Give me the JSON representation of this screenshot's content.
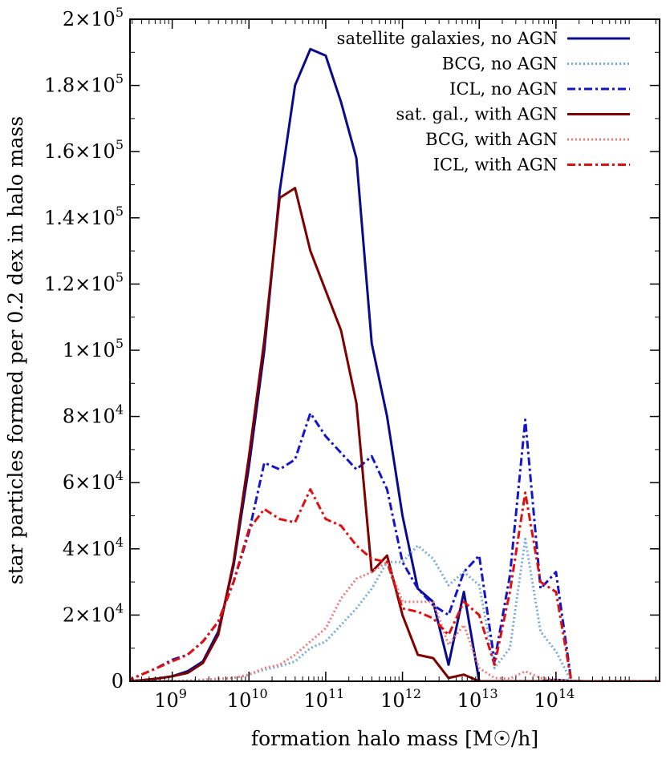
{
  "chart_data": {
    "type": "line",
    "xlabel": "formation halo mass [M☉/h]",
    "ylabel": "star particles formed per 0.2 dex in halo mass",
    "xscale": "log",
    "xlim_log10": [
      8.45,
      15.35
    ],
    "ylim": [
      0,
      200000
    ],
    "grid": false,
    "legend_position": "top-right",
    "xticks": [
      {
        "log10": 9,
        "mantissa": "10",
        "exponent": "9"
      },
      {
        "log10": 10,
        "mantissa": "10",
        "exponent": "10"
      },
      {
        "log10": 11,
        "mantissa": "10",
        "exponent": "11"
      },
      {
        "log10": 12,
        "mantissa": "10",
        "exponent": "12"
      },
      {
        "log10": 13,
        "mantissa": "10",
        "exponent": "13"
      },
      {
        "log10": 14,
        "mantissa": "10",
        "exponent": "14"
      }
    ],
    "yticks": [
      {
        "value": 0,
        "mantissa": "0",
        "exponent": ""
      },
      {
        "value": 20000,
        "mantissa": "2×10",
        "exponent": "4"
      },
      {
        "value": 40000,
        "mantissa": "4×10",
        "exponent": "4"
      },
      {
        "value": 60000,
        "mantissa": "6×10",
        "exponent": "4"
      },
      {
        "value": 80000,
        "mantissa": "8×10",
        "exponent": "4"
      },
      {
        "value": 100000,
        "mantissa": "1×10",
        "exponent": "5"
      },
      {
        "value": 120000,
        "mantissa": "1.2×10",
        "exponent": "5"
      },
      {
        "value": 140000,
        "mantissa": "1.4×10",
        "exponent": "5"
      },
      {
        "value": 160000,
        "mantissa": "1.6×10",
        "exponent": "5"
      },
      {
        "value": 180000,
        "mantissa": "1.8×10",
        "exponent": "5"
      },
      {
        "value": 200000,
        "mantissa": "2×10",
        "exponent": "5"
      }
    ],
    "series": [
      {
        "name": "satellite galaxies, no AGN",
        "color": "#0a0a8c",
        "style": "solid",
        "x_log10": [
          8.4,
          8.6,
          8.8,
          9.0,
          9.2,
          9.4,
          9.6,
          9.8,
          10.0,
          10.2,
          10.4,
          10.6,
          10.8,
          11.0,
          11.2,
          11.4,
          11.6,
          11.8,
          12.0,
          12.2,
          12.4,
          12.6,
          12.8,
          13.0,
          13.2,
          13.4,
          13.6,
          13.8,
          14.0,
          14.2,
          14.4,
          14.6,
          14.8,
          15.0,
          15.2,
          15.4
        ],
        "y": [
          0,
          300,
          800,
          1500,
          3000,
          6000,
          15000,
          35000,
          65000,
          100000,
          148000,
          180000,
          191000,
          189000,
          175000,
          158000,
          102000,
          80000,
          50000,
          28000,
          24000,
          5000,
          27000,
          0,
          0,
          0,
          0,
          0,
          400,
          100,
          0,
          0,
          0,
          0,
          0,
          0
        ]
      },
      {
        "name": "BCG, no AGN",
        "color": "#76aadb",
        "style": "dotted",
        "x_log10": [
          8.4,
          8.6,
          8.8,
          9.0,
          9.2,
          9.4,
          9.6,
          9.8,
          10.0,
          10.2,
          10.4,
          10.6,
          10.8,
          11.0,
          11.2,
          11.4,
          11.6,
          11.8,
          12.0,
          12.2,
          12.4,
          12.6,
          12.8,
          13.0,
          13.2,
          13.4,
          13.6,
          13.8,
          14.0,
          14.2,
          14.4,
          14.6,
          14.8,
          15.0,
          15.2,
          15.4
        ],
        "y": [
          0,
          0,
          0,
          100,
          200,
          400,
          700,
          1000,
          2000,
          3500,
          4500,
          6000,
          10000,
          12000,
          17000,
          22000,
          28000,
          36000,
          36000,
          41000,
          37000,
          29000,
          33000,
          29000,
          4000,
          10000,
          43000,
          15000,
          9000,
          0,
          0,
          0,
          0,
          0,
          0,
          0
        ]
      },
      {
        "name": "ICL, no AGN",
        "color": "#1515c8",
        "style": "dashdot",
        "x_log10": [
          8.4,
          8.6,
          8.8,
          9.0,
          9.2,
          9.4,
          9.6,
          9.8,
          10.0,
          10.2,
          10.4,
          10.6,
          10.8,
          11.0,
          11.2,
          11.4,
          11.6,
          11.8,
          12.0,
          12.2,
          12.4,
          12.6,
          12.8,
          13.0,
          13.2,
          13.4,
          13.6,
          13.8,
          14.0,
          14.2,
          14.4,
          14.6,
          14.8,
          15.0,
          15.2,
          15.4
        ],
        "y": [
          0,
          2000,
          4000,
          6500,
          8000,
          12000,
          18000,
          30000,
          45000,
          66000,
          64000,
          67000,
          81000,
          74000,
          69000,
          64000,
          68000,
          58000,
          36000,
          28000,
          23000,
          20000,
          33000,
          38000,
          6000,
          32000,
          79000,
          28000,
          33000,
          0,
          0,
          0,
          0,
          0,
          0,
          0
        ]
      },
      {
        "name": "sat. gal., with AGN",
        "color": "#800000",
        "style": "solid",
        "x_log10": [
          8.4,
          8.6,
          8.8,
          9.0,
          9.2,
          9.4,
          9.6,
          9.8,
          10.0,
          10.2,
          10.4,
          10.6,
          10.8,
          11.0,
          11.2,
          11.4,
          11.6,
          11.8,
          12.0,
          12.2,
          12.4,
          12.6,
          12.8,
          13.0,
          13.2,
          13.4,
          13.6,
          13.8,
          14.0,
          14.2,
          14.4,
          14.6,
          14.8,
          15.0,
          15.2,
          15.4
        ],
        "y": [
          0,
          300,
          800,
          1500,
          2500,
          5500,
          14000,
          36000,
          68000,
          103000,
          146000,
          149000,
          130000,
          118000,
          106000,
          84000,
          33000,
          38000,
          20000,
          8000,
          7000,
          1000,
          2000,
          0,
          0,
          0,
          0,
          0,
          0,
          0,
          0,
          0,
          0,
          0,
          0,
          0
        ]
      },
      {
        "name": "BCG, with AGN",
        "color": "#ee7b7b",
        "style": "dotted",
        "x_log10": [
          8.4,
          8.6,
          8.8,
          9.0,
          9.2,
          9.4,
          9.6,
          9.8,
          10.0,
          10.2,
          10.4,
          10.6,
          10.8,
          11.0,
          11.2,
          11.4,
          11.6,
          11.8,
          12.0,
          12.2,
          12.4,
          12.6,
          12.8,
          13.0,
          13.2,
          13.4,
          13.6,
          13.8,
          14.0,
          14.2,
          14.4,
          14.6,
          14.8,
          15.0,
          15.2,
          15.4
        ],
        "y": [
          0,
          0,
          0,
          100,
          200,
          400,
          700,
          1000,
          2000,
          4000,
          5000,
          8000,
          12000,
          16000,
          25000,
          31000,
          33000,
          36000,
          24000,
          24000,
          24000,
          11000,
          17000,
          4000,
          1000,
          800,
          3000,
          1000,
          400,
          0,
          0,
          0,
          0,
          0,
          0,
          0
        ]
      },
      {
        "name": "ICL, with AGN",
        "color": "#e01010",
        "style": "dashdot",
        "x_log10": [
          8.4,
          8.6,
          8.8,
          9.0,
          9.2,
          9.4,
          9.6,
          9.8,
          10.0,
          10.2,
          10.4,
          10.6,
          10.8,
          11.0,
          11.2,
          11.4,
          11.6,
          11.8,
          12.0,
          12.2,
          12.4,
          12.6,
          12.8,
          13.0,
          13.2,
          13.4,
          13.6,
          13.8,
          14.0,
          14.2,
          14.4,
          14.6,
          14.8,
          15.0,
          15.2,
          15.4
        ],
        "y": [
          0,
          2000,
          4000,
          6000,
          8000,
          12000,
          18000,
          30000,
          46000,
          52000,
          49000,
          48000,
          58000,
          49000,
          47000,
          41000,
          37000,
          36000,
          22000,
          21000,
          19000,
          14000,
          24000,
          20000,
          5000,
          27000,
          57000,
          30000,
          27000,
          0,
          0,
          0,
          0,
          0,
          0,
          0
        ]
      }
    ]
  }
}
